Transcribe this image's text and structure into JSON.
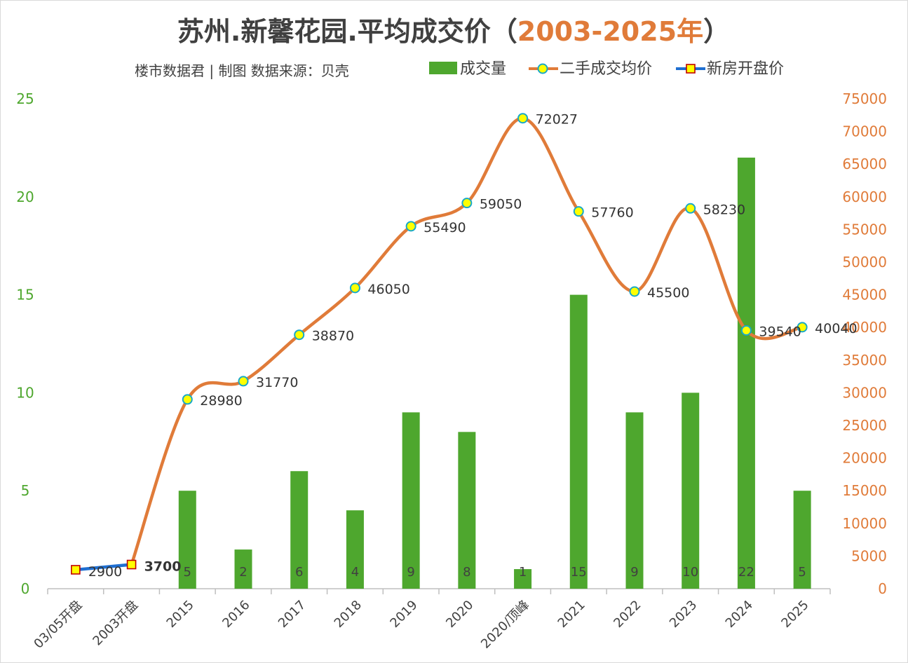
{
  "chart_data": {
    "type": "bar",
    "title": "苏州.新馨花园.平均成交价（",
    "title_years": "2003-2025年",
    "title_close": "）",
    "subtitle": "楼市数据君 | 制图  数据来源：贝壳",
    "categories": [
      "03/05开盘",
      "2003开盘",
      "2015",
      "2016",
      "2017",
      "2018",
      "2019",
      "2020",
      "2020/顶峰",
      "2021",
      "2022",
      "2023",
      "2024",
      "2025"
    ],
    "left_axis": {
      "min": 0,
      "max": 25,
      "ticks": [
        "0",
        "5",
        "10",
        "15",
        "20",
        "25"
      ]
    },
    "right_axis": {
      "min": 0,
      "max": 75000,
      "ticks": [
        "0",
        "5000",
        "10000",
        "15000",
        "20000",
        "25000",
        "30000",
        "35000",
        "40000",
        "45000",
        "50000",
        "55000",
        "60000",
        "65000",
        "70000",
        "75000"
      ]
    },
    "series": [
      {
        "name": "成交量",
        "type": "bar",
        "axis": "left",
        "color": "#4ea72e",
        "values": [
          null,
          null,
          5,
          2,
          6,
          4,
          9,
          8,
          1,
          15,
          9,
          10,
          22,
          5
        ],
        "labels": [
          "",
          "",
          "5",
          "2",
          "6",
          "4",
          "9",
          "8",
          "1",
          "15",
          "9",
          "10",
          "22",
          "5"
        ]
      },
      {
        "name": "二手成交均价",
        "type": "line",
        "axis": "right",
        "color": "#e07b39",
        "values": [
          null,
          3700,
          28980,
          31770,
          38870,
          46050,
          55490,
          59050,
          72027,
          57760,
          45500,
          58230,
          39540,
          40040
        ],
        "labels": [
          "",
          "",
          "28980",
          "31770",
          "38870",
          "46050",
          "55490",
          "59050",
          "72027",
          "57760",
          "45500",
          "58230",
          "39540",
          "40040"
        ]
      },
      {
        "name": "新房开盘价",
        "type": "line",
        "axis": "right",
        "color": "#1f6fd1",
        "values": [
          2900,
          3700,
          null,
          null,
          null,
          null,
          null,
          null,
          null,
          null,
          null,
          null,
          null,
          null
        ],
        "labels": [
          "2900",
          "3700",
          "",
          "",
          "",
          "",
          "",
          "",
          "",
          "",
          "",
          "",
          "",
          ""
        ]
      }
    ],
    "legend": "top-right",
    "grid": false
  }
}
